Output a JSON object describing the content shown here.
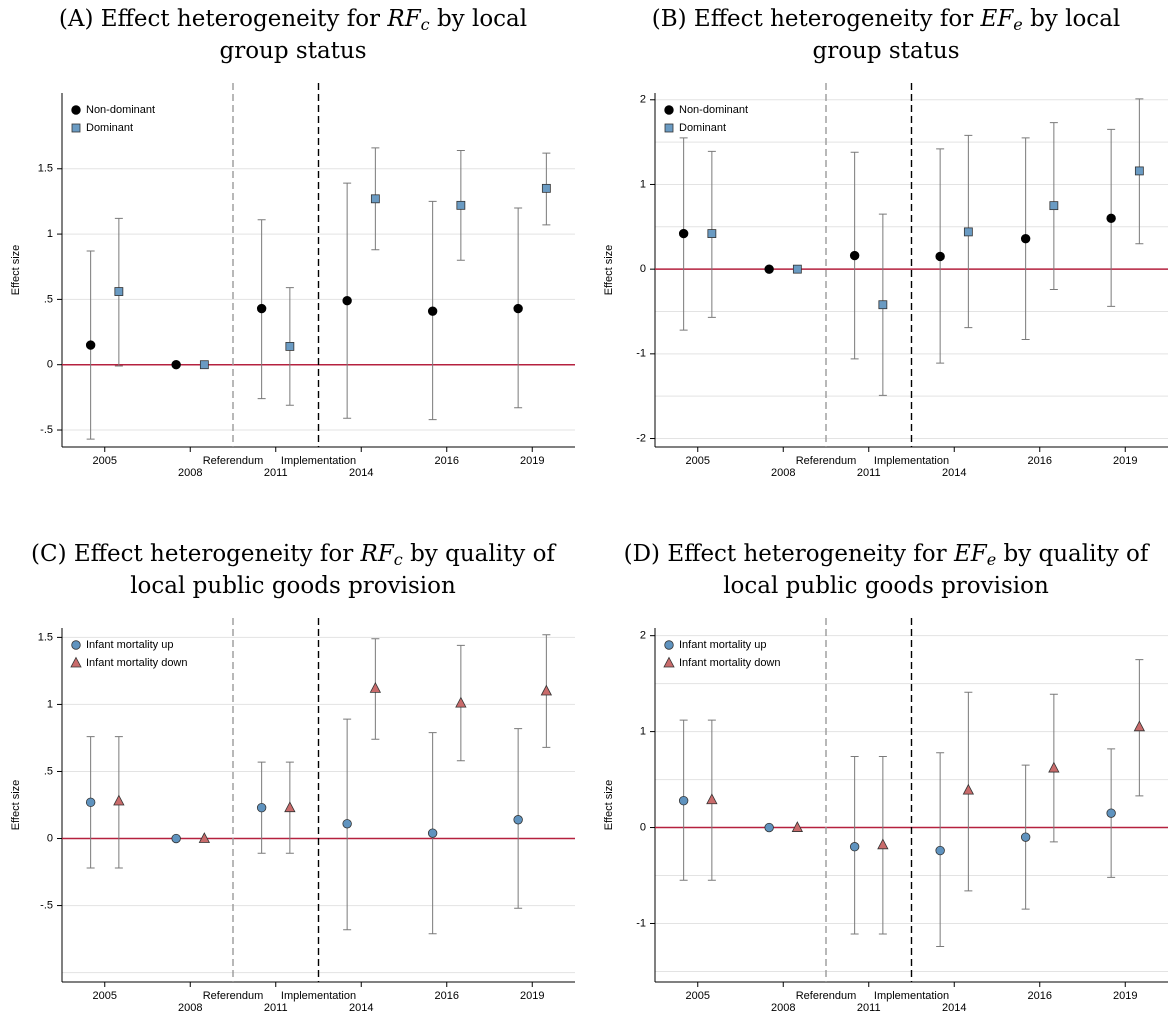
{
  "chart_data": [
    {
      "type": "errorbar",
      "panel": "(A)",
      "title_before": "Effect heterogeneity for",
      "title_math": "RF",
      "title_sub": "c",
      "title_after": "by local",
      "title_line2": "group status",
      "ylabel": "Effect size",
      "categories": [
        "2005",
        "2008",
        "2011",
        "2014",
        "2016",
        "2019"
      ],
      "vlines": [
        {
          "label": "Referendum",
          "color": "#9a9a9a"
        },
        {
          "label": "Implementation",
          "color": "#000000"
        }
      ],
      "hline": {
        "value": 0,
        "color": "#b5213f"
      },
      "ylim": [
        -0.63,
        2.08
      ],
      "yticks": [
        {
          "value": -0.5,
          "label": "-.5"
        },
        0,
        {
          "value": 0.5,
          "label": ".5"
        },
        1,
        1.5
      ],
      "series": [
        {
          "name": "Non-dominant",
          "color": "#000000",
          "marker": "circle",
          "values": [
            0.15,
            0,
            0.43,
            0.49,
            0.41,
            0.43
          ],
          "lower": [
            -0.57,
            null,
            -0.26,
            -0.41,
            -0.42,
            -0.33
          ],
          "upper": [
            0.87,
            null,
            1.11,
            1.39,
            1.25,
            1.2
          ]
        },
        {
          "name": "Dominant",
          "color": "#6a9bc3",
          "marker": "square",
          "values": [
            0.56,
            0,
            0.14,
            1.27,
            1.22,
            1.35
          ],
          "lower": [
            -0.01,
            null,
            -0.31,
            0.88,
            0.8,
            1.07
          ],
          "upper": [
            1.12,
            null,
            0.59,
            1.66,
            1.64,
            1.62
          ]
        }
      ]
    },
    {
      "type": "errorbar",
      "panel": "(B)",
      "title_before": "Effect heterogeneity for",
      "title_math": "EF",
      "title_sub": "e",
      "title_after": "by local",
      "title_line2": "group status",
      "ylabel": "Effect size",
      "categories": [
        "2005",
        "2008",
        "2011",
        "2014",
        "2016",
        "2019"
      ],
      "vlines": [
        {
          "label": "Referendum",
          "color": "#9a9a9a"
        },
        {
          "label": "Implementation",
          "color": "#000000"
        }
      ],
      "hline": {
        "value": 0,
        "color": "#b5213f"
      },
      "ylim": [
        -2.1,
        2.08
      ],
      "yticks": [
        -2,
        -1,
        0,
        1,
        2
      ],
      "grid_lines": [
        -2,
        -1.5,
        -1,
        -0.5,
        0,
        0.5,
        1,
        1.5,
        2
      ],
      "series": [
        {
          "name": "Non-dominant",
          "color": "#000000",
          "marker": "circle",
          "values": [
            0.42,
            0,
            0.16,
            0.15,
            0.36,
            0.6
          ],
          "lower": [
            -0.72,
            null,
            -1.06,
            -1.11,
            -0.83,
            -0.44
          ],
          "upper": [
            1.55,
            null,
            1.38,
            1.42,
            1.55,
            1.65
          ]
        },
        {
          "name": "Dominant",
          "color": "#6a9bc3",
          "marker": "square",
          "values": [
            0.42,
            0,
            -0.42,
            0.44,
            0.75,
            1.16
          ],
          "lower": [
            -0.57,
            null,
            -1.49,
            -0.69,
            -0.24,
            0.3
          ],
          "upper": [
            1.39,
            null,
            0.65,
            1.58,
            1.73,
            2.01
          ]
        }
      ]
    },
    {
      "type": "errorbar",
      "panel": "(C)",
      "title_before": "Effect heterogeneity for",
      "title_math": "RF",
      "title_sub": "c",
      "title_after": "by quality of",
      "title_line2": "local public goods provision",
      "ylabel": "Effect size",
      "categories": [
        "2005",
        "2008",
        "2011",
        "2014",
        "2016",
        "2019"
      ],
      "vlines": [
        {
          "label": "Referendum",
          "color": "#9a9a9a"
        },
        {
          "label": "Implementation",
          "color": "#000000"
        }
      ],
      "hline": {
        "value": 0,
        "color": "#b5213f"
      },
      "ylim": [
        -1.07,
        1.57
      ],
      "yticks": [
        {
          "value": -0.5,
          "label": "-.5"
        },
        0,
        {
          "value": 0.5,
          "label": ".5"
        },
        1,
        1.5
      ],
      "grid_lines": [
        -1,
        -0.5,
        0,
        0.5,
        1,
        1.5
      ],
      "series": [
        {
          "name": "Infant mortality up",
          "color": "#5f93bf",
          "marker": "circle",
          "values": [
            0.27,
            0,
            0.23,
            0.11,
            0.04,
            0.14
          ],
          "lower": [
            -0.22,
            null,
            -0.11,
            -0.68,
            -0.71,
            -0.52
          ],
          "upper": [
            0.76,
            null,
            0.57,
            0.89,
            0.79,
            0.82
          ]
        },
        {
          "name": "Infant mortality down",
          "color": "#c96b6b",
          "marker": "triangle",
          "values": [
            0.28,
            0,
            0.23,
            1.12,
            1.01,
            1.1
          ],
          "lower": [
            -0.22,
            null,
            -0.11,
            0.74,
            0.58,
            0.68
          ],
          "upper": [
            0.76,
            null,
            0.57,
            1.49,
            1.44,
            1.52
          ]
        }
      ]
    },
    {
      "type": "errorbar",
      "panel": "(D)",
      "title_before": "Effect heterogeneity for",
      "title_math": "EF",
      "title_sub": "e",
      "title_after": "by quality of",
      "title_line2": "local public goods provision",
      "ylabel": "Effect size",
      "categories": [
        "2005",
        "2008",
        "2011",
        "2014",
        "2016",
        "2019"
      ],
      "vlines": [
        {
          "label": "Referendum",
          "color": "#9a9a9a"
        },
        {
          "label": "Implementation",
          "color": "#000000"
        }
      ],
      "hline": {
        "value": 0,
        "color": "#b5213f"
      },
      "ylim": [
        -1.61,
        2.08
      ],
      "yticks": [
        -1,
        0,
        1,
        2
      ],
      "grid_lines": [
        -1.5,
        -1,
        -0.5,
        0,
        0.5,
        1,
        1.5,
        2
      ],
      "series": [
        {
          "name": "Infant mortality up",
          "color": "#5f93bf",
          "marker": "circle",
          "values": [
            0.28,
            0,
            -0.2,
            -0.24,
            -0.1,
            0.15
          ],
          "lower": [
            -0.55,
            null,
            -1.11,
            -1.24,
            -0.85,
            -0.52
          ],
          "upper": [
            1.12,
            null,
            0.74,
            0.78,
            0.65,
            0.82
          ]
        },
        {
          "name": "Infant mortality down",
          "color": "#c96b6b",
          "marker": "triangle",
          "values": [
            0.29,
            0,
            -0.18,
            0.39,
            0.62,
            1.05
          ],
          "lower": [
            -0.55,
            null,
            -1.11,
            -0.66,
            -0.15,
            0.33
          ],
          "upper": [
            1.12,
            null,
            0.74,
            1.41,
            1.39,
            1.75
          ]
        }
      ]
    }
  ]
}
